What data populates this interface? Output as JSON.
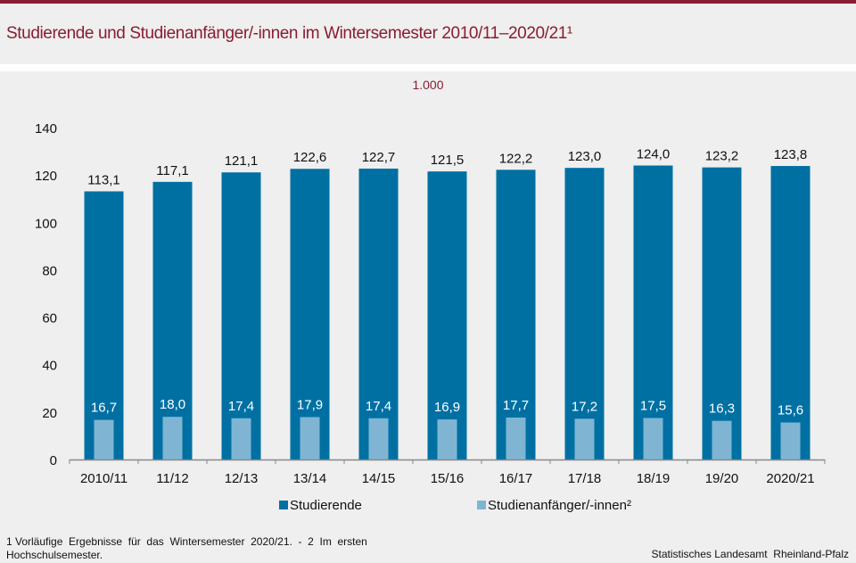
{
  "header": {
    "title": "Studierende und Studienanfänger/-innen im Wintersemester 2010/11–2020/21¹",
    "unit": "1.000"
  },
  "colors": {
    "brand": "#8a1c33",
    "studierende": "#0070a3",
    "anfaenger": "#7fb5d3",
    "axis": "#888888"
  },
  "chart_data": {
    "type": "bar",
    "title": "Studierende und Studienanfänger/-innen im Wintersemester 2010/11–2020/21¹",
    "ylabel": "1.000",
    "xlabel": "",
    "ylim": [
      0,
      140
    ],
    "yticks": [
      0,
      20,
      40,
      60,
      80,
      100,
      120,
      140
    ],
    "grid": false,
    "legend_position": "bottom",
    "categories": [
      "2010/11",
      "11/12",
      "12/13",
      "13/14",
      "14/15",
      "15/16",
      "16/17",
      "17/18",
      "18/19",
      "19/20",
      "2020/21"
    ],
    "series": [
      {
        "name": "Studierende",
        "values": [
          113.1,
          117.1,
          121.1,
          122.6,
          122.7,
          121.5,
          122.2,
          123.0,
          124.0,
          123.2,
          123.8
        ],
        "labels": [
          "113,1",
          "117,1",
          "121,1",
          "122,6",
          "122,7",
          "121,5",
          "122,2",
          "123,0",
          "124,0",
          "123,2",
          "123,8"
        ]
      },
      {
        "name": "Studienanfänger/-innen²",
        "values": [
          16.7,
          18.0,
          17.4,
          17.9,
          17.4,
          16.9,
          17.7,
          17.2,
          17.5,
          16.3,
          15.6
        ],
        "labels": [
          "16,7",
          "18,0",
          "17,4",
          "17,9",
          "17,4",
          "16,9",
          "17,7",
          "17,2",
          "17,5",
          "16,3",
          "15,6"
        ]
      }
    ]
  },
  "legend": {
    "items": [
      {
        "label": "Studierende"
      },
      {
        "label": "Studienanfänger/-innen²"
      }
    ]
  },
  "footer": {
    "footnote_line1": "1 Vorläufige  Ergebnisse  für  das  Wintersemester  2020/21.  -  2  Im  ersten",
    "footnote_line2": "Hochschulsemester.",
    "source": "Statistisches Landesamt  Rheinland-Pfalz"
  }
}
